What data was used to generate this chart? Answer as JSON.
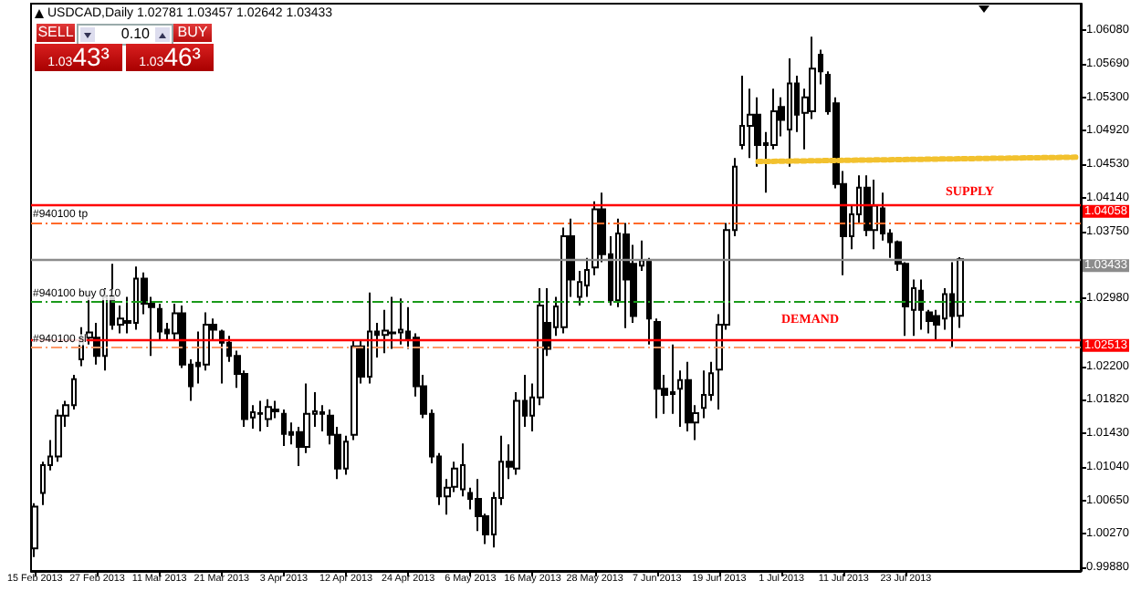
{
  "chart_data": {
    "type": "candlestick",
    "title": "USDCAD,Daily 1.02781 1.03457 1.02642 1.03433",
    "categories": [
      "15 Feb 2013",
      null,
      null,
      null,
      null,
      null,
      null,
      null,
      "27 Feb 2013",
      null,
      null,
      null,
      null,
      null,
      null,
      null,
      "11 Mar 2013",
      null,
      null,
      null,
      null,
      null,
      null,
      null,
      "21 Mar 2013",
      null,
      null,
      null,
      null,
      null,
      null,
      null,
      "3 Apr 2013",
      null,
      null,
      null,
      null,
      null,
      null,
      null,
      "12 Apr 2013",
      null,
      null,
      null,
      null,
      null,
      null,
      null,
      "24 Apr 2013",
      null,
      null,
      null,
      null,
      null,
      null,
      null,
      "6 May 2013",
      null,
      null,
      null,
      null,
      null,
      null,
      null,
      "16 May 2013",
      null,
      null,
      null,
      null,
      null,
      null,
      null,
      "28 May 2013",
      null,
      null,
      null,
      null,
      null,
      null,
      null,
      "7 Jun 2013",
      null,
      null,
      null,
      null,
      null,
      null,
      null,
      "19 Jun 2013",
      null,
      null,
      null,
      null,
      null,
      null,
      null,
      "1 Jul 2013",
      null,
      null,
      null,
      null,
      null,
      null,
      null,
      "11 Jul 2013",
      null,
      null,
      null,
      null,
      null,
      null,
      null,
      "23 Jul 2013",
      null,
      null,
      null,
      null,
      null,
      null,
      null,
      null,
      null,
      null,
      null,
      null,
      null,
      null,
      null,
      null,
      null,
      null,
      null,
      null,
      null,
      null
    ],
    "ohlc": [
      [
        1.001,
        1.0062,
        1.0,
        1.0058
      ],
      [
        1.0074,
        1.011,
        1.006,
        1.0106
      ],
      [
        1.0106,
        1.0135,
        1.01,
        1.0116
      ],
      [
        1.0116,
        1.017,
        1.011,
        1.0163
      ],
      [
        1.0163,
        1.018,
        1.015,
        1.0175
      ],
      [
        1.0175,
        1.021,
        1.017,
        1.0205
      ],
      [
        1.0228,
        1.0265,
        1.022,
        1.0253
      ],
      [
        1.0253,
        1.03,
        1.0245,
        1.0259
      ],
      [
        1.0253,
        1.027,
        1.0222,
        1.0232
      ],
      [
        1.0232,
        1.031,
        1.0215,
        1.03
      ],
      [
        1.0302,
        1.0338,
        1.0262,
        1.0268
      ],
      [
        1.0268,
        1.029,
        1.0258,
        1.0275
      ],
      [
        1.0272,
        1.03,
        1.0258,
        1.027
      ],
      [
        1.027,
        1.0335,
        1.0262,
        1.0321
      ],
      [
        1.0321,
        1.0328,
        1.028,
        1.0292
      ],
      [
        1.0292,
        1.03,
        1.0232,
        1.0288
      ],
      [
        1.0286,
        1.0292,
        1.025,
        1.026
      ],
      [
        1.0262,
        1.027,
        1.025,
        1.0258
      ],
      [
        1.0258,
        1.0292,
        1.025,
        1.0281
      ],
      [
        1.0281,
        1.029,
        1.0218,
        1.0222
      ],
      [
        1.0222,
        1.0228,
        1.018,
        1.0197
      ],
      [
        1.0224,
        1.026,
        1.02,
        1.022
      ],
      [
        1.0222,
        1.0282,
        1.0215,
        1.0268
      ],
      [
        1.0268,
        1.0275,
        1.025,
        1.0262
      ],
      [
        1.026,
        1.0262,
        1.02,
        1.0247
      ],
      [
        1.0247,
        1.0255,
        1.0225,
        1.0232
      ],
      [
        1.0232,
        1.0238,
        1.0195,
        1.0211
      ],
      [
        1.0211,
        1.0215,
        1.015,
        1.0159
      ],
      [
        1.0161,
        1.0175,
        1.0148,
        1.0167
      ],
      [
        1.0165,
        1.018,
        1.0145,
        1.0166
      ],
      [
        1.0159,
        1.0182,
        1.015,
        1.0173
      ],
      [
        1.017,
        1.018,
        1.016,
        1.0168
      ],
      [
        1.0165,
        1.017,
        1.0128,
        1.0142
      ],
      [
        1.0144,
        1.0155,
        1.013,
        1.0141
      ],
      [
        1.0144,
        1.015,
        1.0105,
        1.0127
      ],
      [
        1.0127,
        1.02,
        1.012,
        1.0165
      ],
      [
        1.0165,
        1.019,
        1.015,
        1.0168
      ],
      [
        1.0167,
        1.0175,
        1.0145,
        1.0165
      ],
      [
        1.0163,
        1.017,
        1.013,
        1.0141
      ],
      [
        1.0141,
        1.015,
        1.009,
        1.0102
      ],
      [
        1.0102,
        1.014,
        1.0095,
        1.0133
      ],
      [
        1.0141,
        1.025,
        1.0135,
        1.0243
      ],
      [
        1.0243,
        1.025,
        1.02,
        1.0208
      ],
      [
        1.0208,
        1.0305,
        1.02,
        1.026
      ],
      [
        1.026,
        1.027,
        1.023,
        1.0256
      ],
      [
        1.0256,
        1.0285,
        1.0235,
        1.0261
      ],
      [
        1.0258,
        1.03,
        1.024,
        1.0259
      ],
      [
        1.0259,
        1.0298,
        1.0245,
        1.0262
      ],
      [
        1.026,
        1.0288,
        1.024,
        1.0252
      ],
      [
        1.0253,
        1.0258,
        1.0185,
        1.0197
      ],
      [
        1.0197,
        1.021,
        1.016,
        1.0165
      ],
      [
        1.0165,
        1.017,
        1.0108,
        1.0116
      ],
      [
        1.0116,
        1.012,
        1.006,
        1.007
      ],
      [
        1.007,
        1.009,
        1.0049,
        1.008
      ],
      [
        1.0081,
        1.011,
        1.0075,
        1.0102
      ],
      [
        1.0078,
        1.0131,
        1.007,
        1.0106
      ],
      [
        1.0074,
        1.008,
        1.0055,
        1.0067
      ],
      [
        1.0067,
        1.009,
        1.003,
        1.0047
      ],
      [
        1.0047,
        1.005,
        1.0015,
        1.0026
      ],
      [
        1.0026,
        1.0075,
        1.0011,
        1.0068
      ],
      [
        1.0068,
        1.014,
        1.006,
        1.011
      ],
      [
        1.011,
        1.013,
        1.009,
        1.0104
      ],
      [
        1.0102,
        1.019,
        1.0095,
        1.018
      ],
      [
        1.018,
        1.021,
        1.015,
        1.0163
      ],
      [
        1.0163,
        1.02,
        1.0145,
        1.0184
      ],
      [
        1.0184,
        1.031,
        1.0175,
        1.029
      ],
      [
        1.027,
        1.031,
        1.0232,
        1.024
      ],
      [
        1.0265,
        1.03,
        1.0255,
        1.0289
      ],
      [
        1.0265,
        1.038,
        1.0258,
        1.037
      ],
      [
        1.037,
        1.039,
        1.03,
        1.032
      ],
      [
        1.03,
        1.033,
        1.029,
        1.0317
      ],
      [
        1.0313,
        1.0345,
        1.03,
        1.0331
      ],
      [
        1.0334,
        1.041,
        1.0325,
        1.0401
      ],
      [
        1.0401,
        1.042,
        1.034,
        1.0349
      ],
      [
        1.0349,
        1.037,
        1.029,
        1.0296
      ],
      [
        1.0296,
        1.039,
        1.0288,
        1.0373
      ],
      [
        1.0372,
        1.0385,
        1.0264,
        1.032
      ],
      [
        1.0338,
        1.036,
        1.027,
        1.0278
      ],
      [
        1.0336,
        1.0365,
        1.033,
        1.0342
      ],
      [
        1.0342,
        1.0345,
        1.0245,
        1.0275
      ],
      [
        1.0271,
        1.0275,
        1.016,
        1.0194
      ],
      [
        1.0194,
        1.021,
        1.0165,
        1.0187
      ],
      [
        1.019,
        1.0245,
        1.0165,
        1.0188
      ],
      [
        1.0194,
        1.0215,
        1.015,
        1.0204
      ],
      [
        1.0204,
        1.0225,
        1.0145,
        1.0155
      ],
      [
        1.0155,
        1.0175,
        1.0135,
        1.0166
      ],
      [
        1.0172,
        1.0215,
        1.016,
        1.0187
      ],
      [
        1.0187,
        1.0225,
        1.018,
        1.0212
      ],
      [
        1.0216,
        1.028,
        1.017,
        1.0268
      ],
      [
        1.0268,
        1.0385,
        1.0262,
        1.0377
      ],
      [
        1.0377,
        1.046,
        1.037,
        1.045
      ],
      [
        1.0475,
        1.0555,
        1.047,
        1.0497
      ],
      [
        1.0497,
        1.054,
        1.046,
        1.051
      ],
      [
        1.051,
        1.053,
        1.045,
        1.0475
      ],
      [
        1.0475,
        1.049,
        1.042,
        1.0477
      ],
      [
        1.0475,
        1.054,
        1.047,
        1.0514
      ],
      [
        1.0519,
        1.053,
        1.0485,
        1.0504
      ],
      [
        1.0493,
        1.0575,
        1.045,
        1.0546
      ],
      [
        1.0546,
        1.0555,
        1.049,
        1.051
      ],
      [
        1.0512,
        1.054,
        1.047,
        1.053
      ],
      [
        1.0514,
        1.06,
        1.0505,
        1.0563
      ],
      [
        1.0579,
        1.0585,
        1.0545,
        1.056
      ],
      [
        1.0556,
        1.056,
        1.051,
        1.0514
      ],
      [
        1.0523,
        1.053,
        1.0425,
        1.043
      ],
      [
        1.043,
        1.0445,
        1.0325,
        1.037
      ],
      [
        1.037,
        1.0405,
        1.0355,
        1.0395
      ],
      [
        1.0395,
        1.044,
        1.0385,
        1.0426
      ],
      [
        1.0426,
        1.044,
        1.037,
        1.0377
      ],
      [
        1.0377,
        1.0435,
        1.0355,
        1.0405
      ],
      [
        1.0402,
        1.042,
        1.0365,
        1.0373
      ],
      [
        1.0373,
        1.0378,
        1.0345,
        1.0363
      ],
      [
        1.0363,
        1.0365,
        1.033,
        1.0338
      ],
      [
        1.0338,
        1.034,
        1.0255,
        1.0289
      ],
      [
        1.0285,
        1.032,
        1.0255,
        1.031
      ],
      [
        1.0307,
        1.032,
        1.0262,
        1.0285
      ],
      [
        1.0282,
        1.0285,
        1.0258,
        1.0272
      ],
      [
        1.0278,
        1.0285,
        1.025,
        1.0268
      ],
      [
        1.0275,
        1.031,
        1.0262,
        1.0303
      ],
      [
        1.0303,
        1.034,
        1.0242,
        1.0278
      ],
      [
        1.02781,
        1.03457,
        1.02642,
        1.03433
      ],
      null,
      null,
      null,
      null,
      null,
      null,
      null,
      null,
      null,
      null,
      null,
      null,
      null,
      null,
      null
    ],
    "series": [
      {
        "type": "line",
        "color": "#f2c12e",
        "line_style": "dotted",
        "values": [
          null,
          null,
          null,
          null,
          null,
          null,
          null,
          null,
          null,
          null,
          null,
          null,
          null,
          null,
          null,
          null,
          null,
          null,
          null,
          null,
          null,
          null,
          null,
          null,
          null,
          null,
          null,
          null,
          null,
          null,
          null,
          null,
          null,
          null,
          null,
          null,
          null,
          null,
          null,
          null,
          null,
          null,
          null,
          null,
          null,
          null,
          null,
          null,
          null,
          null,
          null,
          null,
          null,
          null,
          null,
          null,
          null,
          null,
          null,
          null,
          null,
          null,
          null,
          null,
          null,
          null,
          null,
          null,
          null,
          null,
          null,
          null,
          null,
          null,
          null,
          null,
          null,
          null,
          null,
          null,
          null,
          null,
          null,
          null,
          null,
          null,
          null,
          null,
          null,
          null,
          null,
          null,
          null,
          1.0456,
          null,
          null,
          null,
          null,
          null,
          null,
          null,
          null,
          null,
          null,
          null,
          null,
          null,
          null,
          null,
          null,
          null,
          null,
          null,
          null,
          null,
          null,
          null,
          null,
          null,
          null,
          null,
          null,
          null,
          null,
          null,
          null,
          null,
          null,
          null,
          null,
          null,
          null,
          null,
          null,
          1.0461
        ]
      }
    ],
    "ylim": [
      0.9984,
      1.0638
    ],
    "yticks": [
      {
        "value": 1.0608,
        "label": "1.06080"
      },
      {
        "value": 1.0569,
        "label": "1.05690"
      },
      {
        "value": 1.053,
        "label": "1.05300"
      },
      {
        "value": 1.0492,
        "label": "1.04920"
      },
      {
        "value": 1.0453,
        "label": "1.04530"
      },
      {
        "value": 1.0414,
        "label": "1.04140"
      },
      {
        "value": 1.0375,
        "label": "1.03750"
      },
      {
        "value": 1.0298,
        "label": "1.02980"
      },
      {
        "value": 1.022,
        "label": "1.02200"
      },
      {
        "value": 1.0182,
        "label": "1.01820"
      },
      {
        "value": 1.0143,
        "label": "1.01430"
      },
      {
        "value": 1.0104,
        "label": "1.01040"
      },
      {
        "value": 1.0065,
        "label": "1.00650"
      },
      {
        "value": 1.0027,
        "label": "1.00270"
      },
      {
        "value": 0.9988,
        "label": "0.99880"
      }
    ],
    "ref_lines": [
      {
        "axis": "y",
        "value": 1.04058,
        "label": "1.04058",
        "color": "#ff0000",
        "line_style": "solid"
      },
      {
        "axis": "y",
        "value": 1.0386,
        "label": "#940100 tp",
        "color": "#ff6a2a",
        "line_style": "dashed"
      },
      {
        "axis": "y",
        "value": 1.03433,
        "label": "1.03433",
        "color": "#8c8c8c",
        "line_style": "solid"
      },
      {
        "axis": "y",
        "value": 1.0294,
        "label": "#940100 buy 0.10",
        "color": "#1a9a1a",
        "line_style": "dashed"
      },
      {
        "axis": "y",
        "value": 1.02513,
        "label": "1.02513",
        "color": "#ff0000",
        "line_style": "solid"
      },
      {
        "axis": "y",
        "value": 1.0242,
        "label": "#940100 sl",
        "color": "#ff9a6a",
        "line_style": "dashed"
      }
    ],
    "annotations": [
      "SELL",
      "0.10",
      "BUY",
      "1.0343³",
      "1.0346³",
      "SUPPLY",
      "DEMAND"
    ],
    "grid": false
  }
}
